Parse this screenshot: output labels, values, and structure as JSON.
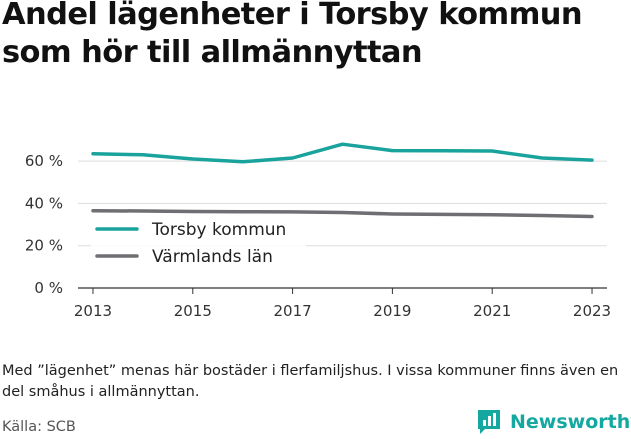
{
  "title": "Andel lägenheter i Torsby kommun som hör till allmännyttan",
  "note": "Med ”lägenhet” menas här bostäder i flerfamiljshus. I vissa kommuner finns även en del småhus i allmännyttan.",
  "source": "Källa: SCB",
  "logo_text": "Newsworthy",
  "chart_data": {
    "type": "line",
    "x": [
      2013,
      2014,
      2015,
      2016,
      2017,
      2018,
      2019,
      2020,
      2021,
      2022,
      2023
    ],
    "x_ticks": [
      "2013",
      "2015",
      "2017",
      "2019",
      "2021",
      "2023"
    ],
    "y_ticks": [
      "0 %",
      "20 %",
      "40 %",
      "60 %"
    ],
    "ylim": [
      0,
      70
    ],
    "grid": true,
    "legend_position": "left-middle",
    "series": [
      {
        "name": "Torsby kommun",
        "color": "#1aa39c",
        "values": [
          63.5,
          63.0,
          61.0,
          59.7,
          61.5,
          68.0,
          65.0,
          64.9,
          64.8,
          61.5,
          60.5
        ]
      },
      {
        "name": "Värmlands län",
        "color": "#6f6f73",
        "values": [
          36.5,
          36.4,
          36.2,
          36.1,
          36.0,
          35.7,
          35.0,
          34.8,
          34.6,
          34.3,
          33.8
        ]
      }
    ]
  }
}
